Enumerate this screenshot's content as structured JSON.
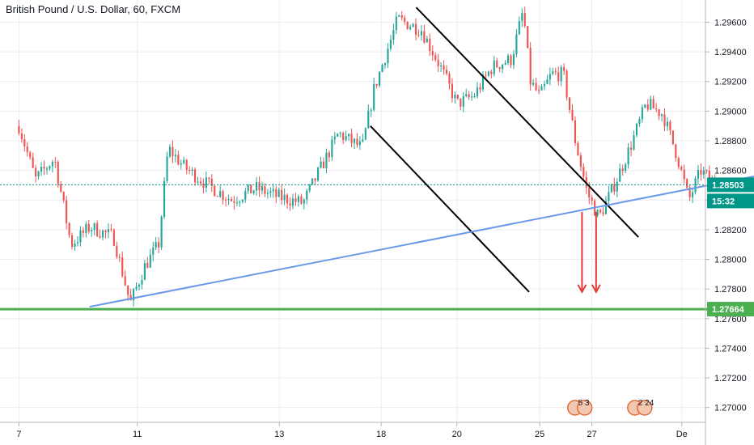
{
  "title": "British Pound / U.S. Dollar, 60, FXCM",
  "colors": {
    "up": "#26a69a",
    "down": "#ef5350",
    "trendline": "#6a9ae8",
    "channel": "#000000",
    "support": "#4caf50",
    "arrow": "#e53935",
    "current": "#009688",
    "grid": "#e9ecf2"
  },
  "chart_data": {
    "type": "candlestick",
    "title": "British Pound / U.S. Dollar, 60, FXCM",
    "ylim": [
      1.269,
      1.2975
    ],
    "y_ticks": [
      "1.29600",
      "1.29400",
      "1.29200",
      "1.29000",
      "1.28800",
      "1.28600",
      "1.28400",
      "1.28200",
      "1.28000",
      "1.27800",
      "1.27600",
      "1.27400",
      "1.27200",
      "1.27000"
    ],
    "x_ticks": [
      "7",
      "11",
      "13",
      "18",
      "20",
      "25",
      "27",
      "De"
    ],
    "x_tick_positions": [
      0,
      5,
      11,
      15.3,
      18.5,
      22,
      24.2,
      28
    ],
    "x_range": [
      -0.8,
      29
    ],
    "current_price": "1.28503",
    "countdown": "15:32",
    "support_level": 1.27664,
    "support_label": "1.27664",
    "key_points": [
      {
        "x": 0,
        "y": 1.289
      },
      {
        "x": 0.7,
        "y": 1.2854
      },
      {
        "x": 1.5,
        "y": 1.2868
      },
      {
        "x": 2.2,
        "y": 1.281
      },
      {
        "x": 3.0,
        "y": 1.2822
      },
      {
        "x": 4.0,
        "y": 1.2815
      },
      {
        "x": 4.7,
        "y": 1.277
      },
      {
        "x": 5.3,
        "y": 1.2795
      },
      {
        "x": 5.9,
        "y": 1.281
      },
      {
        "x": 6.3,
        "y": 1.2875
      },
      {
        "x": 7.0,
        "y": 1.2862
      },
      {
        "x": 8.0,
        "y": 1.285
      },
      {
        "x": 9.0,
        "y": 1.284
      },
      {
        "x": 10.0,
        "y": 1.2848
      },
      {
        "x": 11.0,
        "y": 1.2842
      },
      {
        "x": 12.0,
        "y": 1.2838
      },
      {
        "x": 13.5,
        "y": 1.2885
      },
      {
        "x": 14.5,
        "y": 1.2875
      },
      {
        "x": 15.0,
        "y": 1.2915
      },
      {
        "x": 16.0,
        "y": 1.2962
      },
      {
        "x": 17.0,
        "y": 1.2955
      },
      {
        "x": 17.8,
        "y": 1.293
      },
      {
        "x": 18.5,
        "y": 1.2905
      },
      {
        "x": 19.2,
        "y": 1.291
      },
      {
        "x": 20.0,
        "y": 1.293
      },
      {
        "x": 20.8,
        "y": 1.2935
      },
      {
        "x": 21.3,
        "y": 1.2968
      },
      {
        "x": 21.6,
        "y": 1.292
      },
      {
        "x": 22.0,
        "y": 1.291
      },
      {
        "x": 22.5,
        "y": 1.2925
      },
      {
        "x": 23.0,
        "y": 1.2925
      },
      {
        "x": 23.5,
        "y": 1.288
      },
      {
        "x": 24.0,
        "y": 1.2845
      },
      {
        "x": 24.5,
        "y": 1.2828
      },
      {
        "x": 25.2,
        "y": 1.2852
      },
      {
        "x": 25.8,
        "y": 1.2875
      },
      {
        "x": 26.5,
        "y": 1.2905
      },
      {
        "x": 27.2,
        "y": 1.2898
      },
      {
        "x": 27.8,
        "y": 1.287
      },
      {
        "x": 28.3,
        "y": 1.284
      },
      {
        "x": 28.8,
        "y": 1.286
      },
      {
        "x": 29.4,
        "y": 1.285
      }
    ],
    "trendline": {
      "from": [
        1.2768,
        0
      ],
      "to": [
        1.2856,
        1
      ]
    },
    "channel_upper": {
      "from": [
        1.297,
        0.59
      ],
      "to": [
        1.2815,
        0.905
      ]
    },
    "channel_lower": {
      "from": [
        1.289,
        0.525
      ],
      "to": [
        1.2778,
        0.75
      ]
    },
    "arrows": [
      {
        "x": 0.825,
        "y1": 1.2832,
        "y2": 1.2778
      },
      {
        "x": 0.845,
        "y1": 1.2832,
        "y2": 1.2778
      }
    ],
    "event_marks": [
      {
        "label": "5 3",
        "x": 0.815
      },
      {
        "label": "2 24",
        "x": 0.9
      }
    ]
  }
}
